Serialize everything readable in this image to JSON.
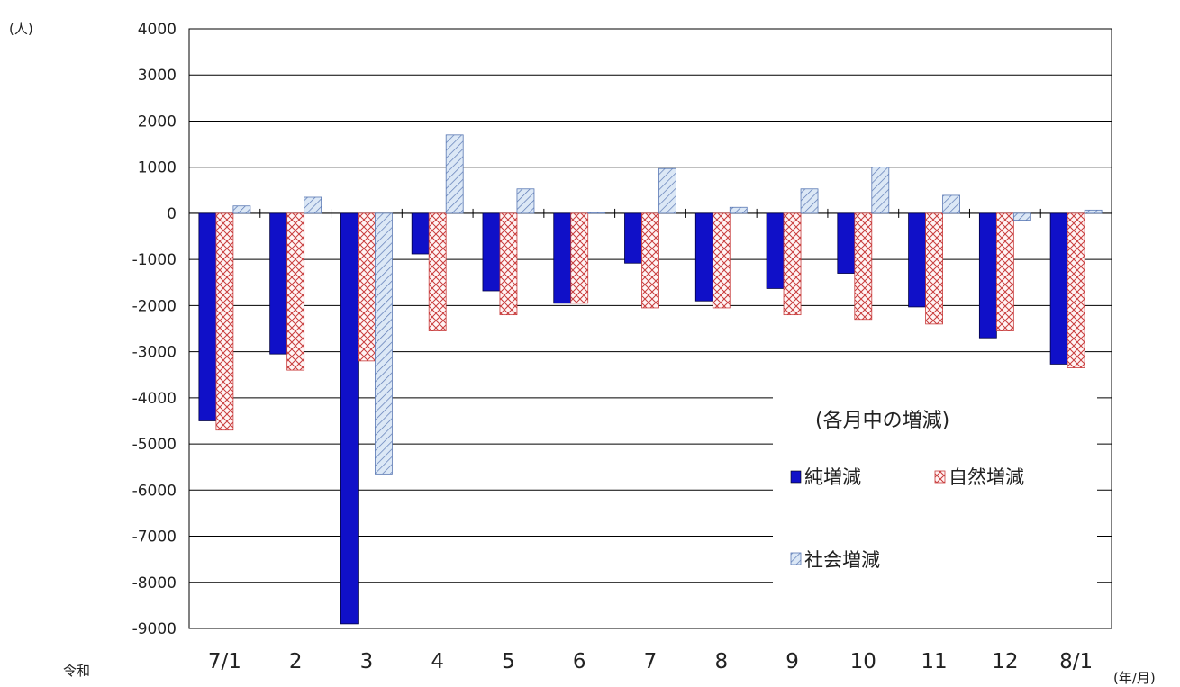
{
  "chart_data": {
    "type": "bar",
    "y_unit": "(人)",
    "x_era_label": "令和",
    "x_unit": "(年/月)",
    "categories": [
      "7/1",
      "2",
      "3",
      "4",
      "5",
      "6",
      "7",
      "8",
      "9",
      "10",
      "11",
      "12",
      "8/1"
    ],
    "series": [
      {
        "name": "純増減",
        "values": [
          -4500,
          -3050,
          -8900,
          -880,
          -1680,
          -1950,
          -1080,
          -1900,
          -1630,
          -1300,
          -2030,
          -2700,
          -3270
        ]
      },
      {
        "name": "自然増減",
        "values": [
          -4700,
          -3400,
          -3200,
          -2550,
          -2200,
          -1950,
          -2050,
          -2050,
          -2200,
          -2300,
          -2400,
          -2550,
          -3350
        ]
      },
      {
        "name": "社会増減",
        "values": [
          160,
          350,
          -5650,
          1700,
          530,
          20,
          970,
          130,
          530,
          1000,
          390,
          -150,
          70
        ]
      }
    ],
    "legend_title": "(各月中の増減)",
    "ylim": [
      -9000,
      4000
    ],
    "yticks": [
      4000,
      3000,
      2000,
      1000,
      0,
      -1000,
      -2000,
      -3000,
      -4000,
      -5000,
      -6000,
      -7000,
      -8000,
      -9000
    ],
    "grid": true,
    "legend_position": "bottom-right",
    "colors": {
      "net": "#1010c8",
      "natural": "#c83c3c",
      "social": "#5a78b4"
    }
  }
}
